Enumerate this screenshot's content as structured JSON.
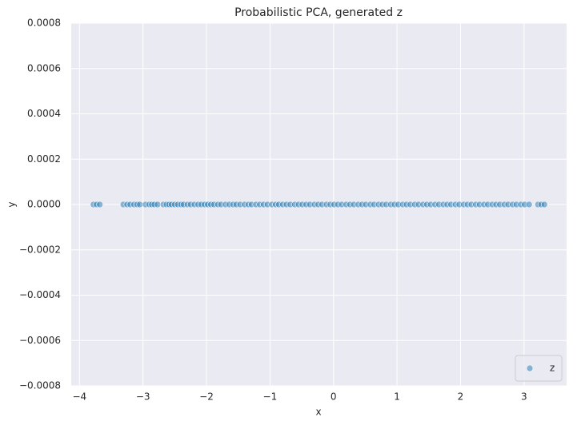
{
  "chart_data": {
    "type": "scatter",
    "title": "Probabilistic PCA, generated z",
    "x_label": "x",
    "y_label": "y",
    "x": [
      -3.78,
      -3.73,
      -3.68,
      -3.31,
      -3.25,
      -3.2,
      -3.14,
      -3.09,
      -3.05,
      -2.96,
      -2.9,
      -2.86,
      -2.82,
      -2.77,
      -2.68,
      -2.63,
      -2.59,
      -2.55,
      -2.5,
      -2.45,
      -2.4,
      -2.36,
      -2.3,
      -2.25,
      -2.19,
      -2.13,
      -2.08,
      -2.03,
      -1.98,
      -1.93,
      -1.88,
      -1.82,
      -1.77,
      -1.7,
      -1.64,
      -1.58,
      -1.53,
      -1.47,
      -1.4,
      -1.34,
      -1.29,
      -1.22,
      -1.16,
      -1.1,
      -1.04,
      -0.97,
      -0.91,
      -0.86,
      -0.8,
      -0.74,
      -0.68,
      -0.61,
      -0.55,
      -0.49,
      -0.43,
      -0.37,
      -0.3,
      -0.24,
      -0.18,
      -0.11,
      -0.05,
      0.01,
      0.07,
      0.13,
      0.2,
      0.26,
      0.32,
      0.39,
      0.45,
      0.51,
      0.58,
      0.64,
      0.71,
      0.77,
      0.83,
      0.9,
      0.96,
      1.02,
      1.09,
      1.15,
      1.21,
      1.28,
      1.34,
      1.41,
      1.47,
      1.53,
      1.6,
      1.66,
      1.73,
      1.79,
      1.85,
      1.92,
      1.98,
      2.05,
      2.11,
      2.17,
      2.24,
      2.3,
      2.37,
      2.43,
      2.5,
      2.56,
      2.62,
      2.69,
      2.75,
      2.82,
      2.88,
      2.95,
      3.01,
      3.08,
      3.22,
      3.27,
      3.32
    ],
    "series": [
      {
        "name": "z",
        "color": "#1f77b4",
        "values": [
          0,
          0,
          0,
          0,
          0,
          0,
          0,
          0,
          0,
          0,
          0,
          0,
          0,
          0,
          0,
          0,
          0,
          0,
          0,
          0,
          0,
          0,
          0,
          0,
          0,
          0,
          0,
          0,
          0,
          0,
          0,
          0,
          0,
          0,
          0,
          0,
          0,
          0,
          0,
          0,
          0,
          0,
          0,
          0,
          0,
          0,
          0,
          0,
          0,
          0,
          0,
          0,
          0,
          0,
          0,
          0,
          0,
          0,
          0,
          0,
          0,
          0,
          0,
          0,
          0,
          0,
          0,
          0,
          0,
          0,
          0,
          0,
          0,
          0,
          0,
          0,
          0,
          0,
          0,
          0,
          0,
          0,
          0,
          0,
          0,
          0,
          0,
          0,
          0,
          0,
          0,
          0,
          0,
          0,
          0,
          0,
          0,
          0,
          0,
          0,
          0,
          0,
          0,
          0,
          0,
          0,
          0,
          0,
          0,
          0,
          0,
          0,
          0
        ]
      }
    ],
    "xlim": [
      -4.13,
      3.67
    ],
    "xticks": [
      {
        "value": -4,
        "label": "−4"
      },
      {
        "value": -3,
        "label": "−3"
      },
      {
        "value": -2,
        "label": "−2"
      },
      {
        "value": -1,
        "label": "−1"
      },
      0,
      1,
      2,
      3
    ],
    "ylim": [
      -0.0008,
      0.0008
    ],
    "yticks": [
      {
        "value": -0.0008,
        "label": "−0.0008"
      },
      {
        "value": -0.0006,
        "label": "−0.0006"
      },
      {
        "value": -0.0004,
        "label": "−0.0004"
      },
      {
        "value": -0.0002,
        "label": "−0.0002"
      },
      {
        "value": 0,
        "label": "0.0000"
      },
      {
        "value": 0.0002,
        "label": "0.0002"
      },
      {
        "value": 0.0004,
        "label": "0.0004"
      },
      {
        "value": 0.0006,
        "label": "0.0006"
      },
      {
        "value": 0.0008,
        "label": "0.0008"
      }
    ],
    "grid": true,
    "legend_position": "lower right"
  }
}
